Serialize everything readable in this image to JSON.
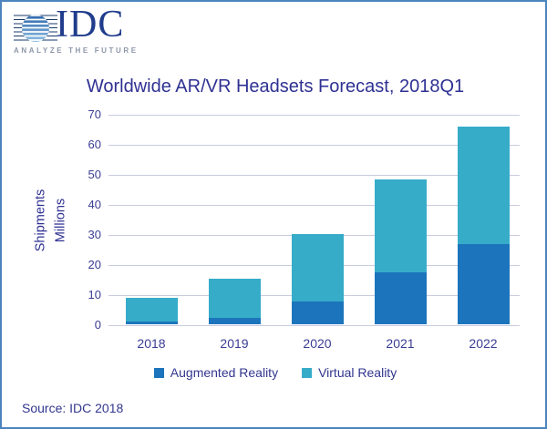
{
  "logo": {
    "brand": "IDC",
    "tagline": "ANALYZE THE FUTURE"
  },
  "source": "Source: IDC 2018",
  "colors": {
    "augmented_reality": "#1C75BC",
    "virtual_reality": "#36ACC9",
    "title_text": "#2F3193",
    "axis_text": "#3A3D94",
    "gridline": "#C9CCDE",
    "frame_border": "#4C84BE",
    "brand_navy": "#203C8C",
    "tagline_gray": "#8D97A9"
  },
  "y_axis": {
    "label_lines": [
      "Shipments",
      "Millions"
    ]
  },
  "chart_data": {
    "type": "bar",
    "stacked": true,
    "title": "Worldwide AR/VR Headsets Forecast, 2018Q1",
    "categories": [
      "2018",
      "2019",
      "2020",
      "2021",
      "2022"
    ],
    "series": [
      {
        "name": "Augmented Reality",
        "color": "#1C75BC",
        "values": [
          0.8,
          2.2,
          7.5,
          17.2,
          26.7
        ]
      },
      {
        "name": "Virtual Reality",
        "color": "#36ACC9",
        "values": [
          8.1,
          13.0,
          22.5,
          31.0,
          39.2
        ]
      }
    ],
    "totals": [
      8.9,
      15.2,
      30.0,
      48.2,
      65.9
    ],
    "xlabel": "",
    "ylabel": "Shipments Millions",
    "ylim": [
      0,
      70
    ],
    "yticks": [
      0,
      10,
      20,
      30,
      40,
      50,
      60,
      70
    ],
    "grid": "horizontal",
    "legend_position": "bottom",
    "legend_entries": [
      "Augmented Reality",
      "Virtual Reality"
    ]
  }
}
